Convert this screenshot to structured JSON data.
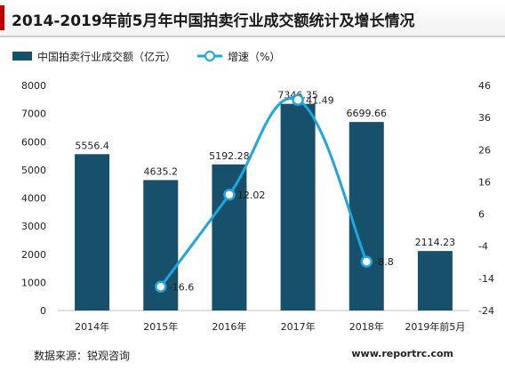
{
  "title": "2014-2019年前5月年中国拍卖行业成交额统计及增长情况",
  "footer": {
    "source": "数据来源：锐观咨询",
    "url": "www.reportrc.com"
  },
  "colors": {
    "bar": "#17506a",
    "line": "#1fa6de",
    "accent": "#c00000"
  },
  "chart_data": {
    "type": "bar",
    "categories": [
      "2014年",
      "2015年",
      "2016年",
      "2017年",
      "2018年",
      "2019年前5月"
    ],
    "series": [
      {
        "name": "中国拍卖行业成交额（亿元）",
        "type": "bar",
        "axis": "left",
        "values": [
          5556.4,
          4635.2,
          5192.28,
          7346.35,
          6699.66,
          2114.23
        ],
        "labels": [
          "5556.4",
          "4635.2",
          "5192.28",
          "7346.35",
          "6699.66",
          "2114.23"
        ]
      },
      {
        "name": "增速（%）",
        "type": "line",
        "axis": "right",
        "values": [
          null,
          -16.6,
          12.02,
          41.49,
          -8.8,
          null
        ],
        "labels": [
          "",
          "-16.6",
          "12.02",
          "41.49",
          "-8.8",
          ""
        ]
      }
    ],
    "y_left": {
      "min": 0,
      "max": 8000,
      "ticks": [
        "0",
        "1000",
        "2000",
        "3000",
        "4000",
        "5000",
        "6000",
        "7000",
        "8000"
      ]
    },
    "y_right": {
      "min": -24,
      "max": 46,
      "ticks": [
        "-24",
        "-14",
        "-4",
        "6",
        "16",
        "26",
        "36",
        "46"
      ]
    },
    "legend": "top-left",
    "grid": false
  }
}
